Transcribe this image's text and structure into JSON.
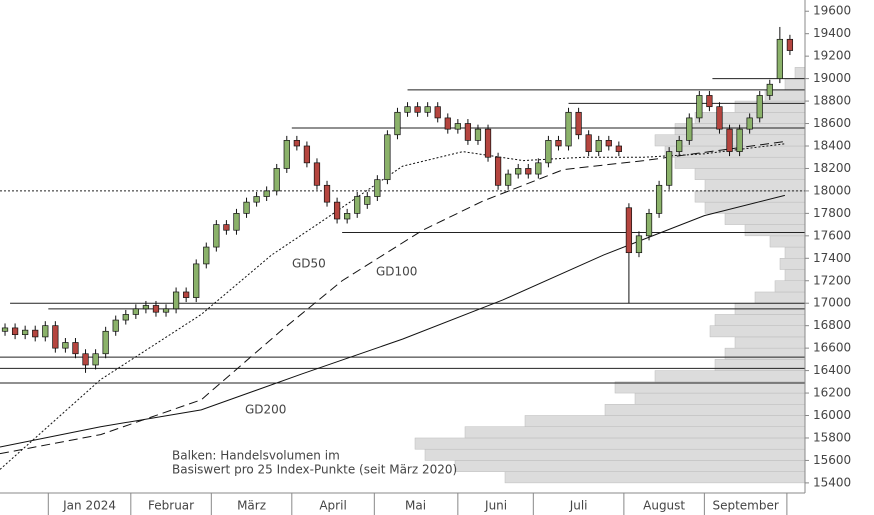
{
  "chart_data": {
    "type": "candlestick",
    "open": [
      16750,
      16780,
      16720,
      16760,
      16700,
      16800,
      16600,
      16650,
      16550,
      16450,
      16550,
      16750,
      16850,
      16900,
      16950,
      16980,
      16920,
      16950,
      17100,
      17050,
      17350,
      17500,
      17700,
      17650,
      17800,
      17900,
      17950,
      18000,
      18200,
      18450,
      18400,
      18250,
      18050,
      17900,
      17750,
      17800,
      17880,
      17950,
      18100,
      18500,
      18700,
      18750,
      18700,
      18750,
      18650,
      18550,
      18600,
      18450,
      18550,
      18300,
      18050,
      18150,
      18200,
      18150,
      18250,
      18450,
      18400,
      18700,
      18500,
      18350,
      18450,
      18400,
      17850,
      17450,
      17600,
      17800,
      18050,
      18350,
      18450,
      18650,
      18850,
      18750,
      18550,
      18350,
      18550,
      18650,
      18850,
      19000,
      19350
    ],
    "high": [
      16820,
      16820,
      16800,
      16800,
      16840,
      16840,
      16690,
      16690,
      16590,
      16590,
      16790,
      16890,
      16940,
      16990,
      17020,
      17020,
      16990,
      17140,
      17140,
      17390,
      17540,
      17740,
      17740,
      17840,
      17940,
      17990,
      18040,
      18240,
      18490,
      18490,
      18440,
      18290,
      18090,
      17940,
      17840,
      17990,
      17990,
      18140,
      18540,
      18740,
      18790,
      18790,
      18790,
      18790,
      18690,
      18640,
      18640,
      18590,
      18590,
      18340,
      18190,
      18240,
      18240,
      18290,
      18490,
      18490,
      18740,
      18740,
      18540,
      18490,
      18490,
      18440,
      17890,
      17640,
      17840,
      18090,
      18390,
      18490,
      18690,
      18890,
      18890,
      18790,
      18590,
      18590,
      18690,
      18890,
      18990,
      19460,
      19390
    ],
    "low": [
      16710,
      16680,
      16680,
      16660,
      16660,
      16560,
      16560,
      16510,
      16380,
      16410,
      16510,
      16710,
      16810,
      16860,
      16910,
      16880,
      16880,
      16910,
      17010,
      17010,
      17310,
      17460,
      17610,
      17610,
      17760,
      17860,
      17910,
      17960,
      18160,
      18360,
      18210,
      18010,
      17860,
      17710,
      17710,
      17760,
      17840,
      17910,
      18060,
      18460,
      18660,
      18660,
      18660,
      18610,
      18510,
      18510,
      18410,
      18410,
      18260,
      18010,
      18010,
      18110,
      18110,
      18110,
      18210,
      18360,
      18360,
      18460,
      18310,
      18310,
      18360,
      18310,
      17000,
      17410,
      17560,
      17760,
      18010,
      18310,
      18410,
      18610,
      18710,
      18510,
      18310,
      18310,
      18510,
      18610,
      18810,
      18960,
      19210
    ],
    "close": [
      16780,
      16720,
      16760,
      16700,
      16800,
      16600,
      16650,
      16550,
      16450,
      16550,
      16750,
      16850,
      16900,
      16950,
      16980,
      16920,
      16950,
      17100,
      17050,
      17350,
      17500,
      17700,
      17650,
      17800,
      17900,
      17950,
      18000,
      18200,
      18450,
      18400,
      18250,
      18050,
      17900,
      17750,
      17800,
      17950,
      17950,
      18100,
      18500,
      18700,
      18750,
      18700,
      18750,
      18650,
      18550,
      18600,
      18450,
      18550,
      18300,
      18050,
      18150,
      18200,
      18150,
      18250,
      18450,
      18400,
      18700,
      18500,
      18350,
      18450,
      18400,
      18350,
      17450,
      17600,
      17800,
      18050,
      18350,
      18450,
      18650,
      18850,
      18750,
      18550,
      18350,
      18550,
      18650,
      18850,
      18950,
      19350,
      19250
    ],
    "up_color": "#8bb26a",
    "down_color": "#b5453f",
    "xlim": [
      -0.5,
      79.5
    ],
    "ylim": [
      15310,
      19700
    ],
    "yticks": [
      15400,
      15600,
      15800,
      16000,
      16200,
      16400,
      16600,
      16800,
      17000,
      17200,
      17400,
      17600,
      17800,
      18000,
      18200,
      18400,
      18600,
      18800,
      19000,
      19200,
      19400,
      19600
    ],
    "month_ticks": [
      4.3,
      12.5,
      20.5,
      28.5,
      36.7,
      45,
      52.5,
      61.5,
      69.5,
      77.7
    ],
    "months": {
      "labels": [
        "Jan 2024",
        "Februar",
        "März",
        "April",
        "Mai",
        "Juni",
        "Juli",
        "August",
        "September"
      ],
      "x": [
        8.4,
        16.5,
        24.5,
        32.6,
        40.8,
        48.8,
        57,
        65.5,
        73.6
      ]
    },
    "moving_averages": [
      {
        "name": "GD50",
        "style": "dotted",
        "x": [
          -0.5,
          9.5,
          19.5,
          26.5,
          31.5,
          39.5,
          45.5,
          51.5,
          57.5,
          63.5,
          69.5,
          77.5
        ],
        "values": [
          15520,
          16320,
          16900,
          17430,
          17730,
          18220,
          18350,
          18270,
          18300,
          18300,
          18330,
          18420
        ]
      },
      {
        "name": "GD100",
        "style": "dashed",
        "x": [
          -0.5,
          9.5,
          19.5,
          27.5,
          33.5,
          41.5,
          47.5,
          55.5,
          63.5,
          77.5
        ],
        "values": [
          15660,
          15830,
          16140,
          16760,
          17200,
          17650,
          17910,
          18190,
          18270,
          18440
        ]
      },
      {
        "name": "GD200",
        "style": "solid",
        "x": [
          -0.5,
          9.5,
          19.5,
          29.5,
          39.5,
          49.5,
          59.5,
          69.5,
          77.5
        ],
        "values": [
          15720,
          15900,
          16050,
          16370,
          16680,
          17030,
          17430,
          17780,
          17960
        ]
      }
    ],
    "levels": [
      {
        "value": 19000,
        "from": 70.3,
        "style": "solid"
      },
      {
        "value": 18900,
        "from": 40,
        "style": "solid"
      },
      {
        "value": 18780,
        "from": 56,
        "style": "solid"
      },
      {
        "value": 18560,
        "from": 28.5,
        "style": "solid"
      },
      {
        "value": 18000,
        "from": -0.5,
        "style": "dotted"
      },
      {
        "value": 17630,
        "from": 33.5,
        "style": "solid"
      },
      {
        "value": 17000,
        "from": 0.5,
        "style": "solid"
      },
      {
        "value": 16950,
        "from": 4.3,
        "style": "solid"
      },
      {
        "value": 16520,
        "from": -0.5,
        "style": "solid"
      },
      {
        "value": 16420,
        "from": -0.5,
        "style": "solid"
      },
      {
        "value": 16290,
        "from": -0.5,
        "style": "solid"
      }
    ],
    "volume_profile": {
      "levels": [
        15400,
        15500,
        15600,
        15700,
        15800,
        15900,
        16000,
        16100,
        16200,
        16300,
        16400,
        16500,
        16600,
        16700,
        16800,
        16900,
        17000,
        17100,
        17200,
        17300,
        17400,
        17500,
        17600,
        17700,
        17800,
        17900,
        18000,
        18100,
        18200,
        18300,
        18400,
        18500,
        18600,
        18700,
        18800,
        18900,
        19000
      ],
      "values": [
        300,
        350,
        380,
        390,
        340,
        280,
        200,
        170,
        190,
        150,
        90,
        80,
        70,
        95,
        90,
        70,
        50,
        30,
        20,
        25,
        20,
        35,
        60,
        80,
        100,
        110,
        100,
        110,
        130,
        140,
        150,
        130,
        110,
        70,
        40,
        20,
        10
      ],
      "color": "#dcdcdc"
    },
    "annotation": [
      "Balken: Handelsvolumen im",
      "Basiswert pro 25 Index-Punkte (seit März 2020)"
    ]
  }
}
